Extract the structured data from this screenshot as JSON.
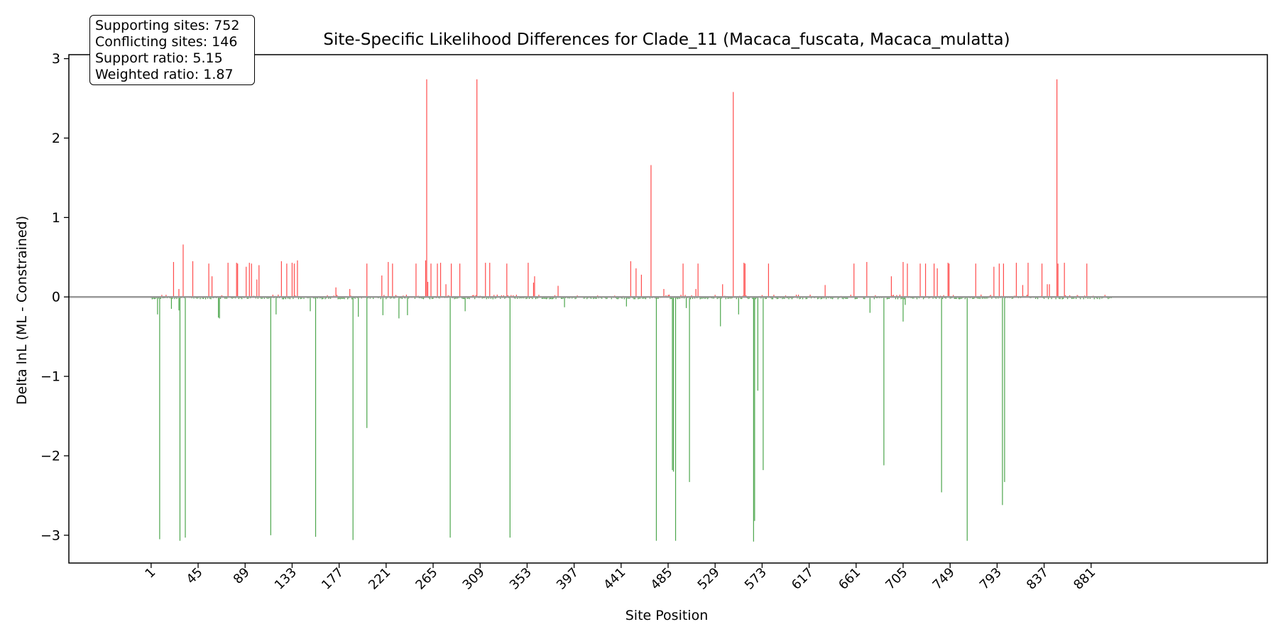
{
  "chart_data": {
    "type": "bar",
    "title": "Site-Specific Likelihood Differences for Clade_11 (Macaca_fuscata, Macaca_mulatta)",
    "xlabel": "Site Position",
    "ylabel": "Delta lnL (ML - Constrained)",
    "xlim": [
      -76,
      1046
    ],
    "ylim": [
      -3.35,
      3.05
    ],
    "x_ticks": [
      1,
      45,
      89,
      133,
      177,
      221,
      265,
      309,
      353,
      397,
      441,
      485,
      529,
      573,
      617,
      661,
      705,
      749,
      793,
      837,
      881
    ],
    "y_ticks": [
      -3,
      -2,
      -1,
      0,
      1,
      2,
      3
    ],
    "num_sites": 900,
    "grid": false,
    "zero_line": true,
    "colors": {
      "positive": "#ff0000",
      "negative": "#008000",
      "zero_line": "#999999"
    },
    "positive_series": {
      "name": "Conflicting sites",
      "x": [
        22,
        27,
        31,
        40,
        55,
        58,
        73,
        81,
        82,
        90,
        93,
        95,
        100,
        102,
        123,
        128,
        133,
        135,
        138,
        174,
        187,
        203,
        217,
        223,
        227,
        249,
        258,
        259,
        260,
        263,
        269,
        272,
        277,
        282,
        290,
        306,
        314,
        318,
        334,
        354,
        359,
        360,
        382,
        450,
        455,
        460,
        469,
        481,
        499,
        511,
        513,
        536,
        546,
        556,
        557,
        579,
        632,
        659,
        671,
        694,
        705,
        709,
        721,
        726,
        734,
        737,
        747,
        748,
        773,
        790,
        795,
        799,
        811,
        817,
        822,
        835,
        840,
        842,
        849,
        850,
        856,
        877
      ],
      "values": [
        0.44,
        0.1,
        0.66,
        0.45,
        0.42,
        0.26,
        0.43,
        0.43,
        0.42,
        0.38,
        0.43,
        0.42,
        0.22,
        0.4,
        0.45,
        0.42,
        0.43,
        0.42,
        0.46,
        0.12,
        0.1,
        0.42,
        0.27,
        0.44,
        0.42,
        0.42,
        0.46,
        2.74,
        0.19,
        0.42,
        0.42,
        0.43,
        0.16,
        0.42,
        0.42,
        2.74,
        0.43,
        0.43,
        0.42,
        0.43,
        0.18,
        0.26,
        0.14,
        0.45,
        0.36,
        0.28,
        1.66,
        0.1,
        0.42,
        0.1,
        0.42,
        0.16,
        2.58,
        0.43,
        0.42,
        0.42,
        0.15,
        0.42,
        0.44,
        0.26,
        0.44,
        0.42,
        0.42,
        0.42,
        0.42,
        0.36,
        0.43,
        0.42,
        0.42,
        0.38,
        0.42,
        0.42,
        0.43,
        0.15,
        0.43,
        0.42,
        0.16,
        0.16,
        2.74,
        0.42,
        0.43,
        0.42
      ]
    },
    "negative_series": {
      "name": "Supporting sites",
      "x": [
        7,
        9,
        20,
        27,
        28,
        33,
        64,
        65,
        113,
        118,
        150,
        155,
        190,
        195,
        203,
        218,
        233,
        241,
        281,
        295,
        337,
        388,
        446,
        474,
        489,
        490,
        492,
        502,
        505,
        534,
        551,
        565,
        566,
        569,
        574,
        674,
        687,
        705,
        707,
        741,
        765,
        798,
        800
      ],
      "values": [
        -0.22,
        -3.05,
        -0.15,
        -0.17,
        -3.07,
        -3.03,
        -0.26,
        -0.27,
        -3.0,
        -0.22,
        -0.18,
        -3.02,
        -3.06,
        -0.25,
        -1.65,
        -0.23,
        -0.27,
        -0.23,
        -3.03,
        -0.18,
        -3.03,
        -0.13,
        -0.12,
        -3.07,
        -2.18,
        -2.2,
        -3.07,
        -0.14,
        -2.33,
        -0.37,
        -0.22,
        -3.08,
        -2.82,
        -1.18,
        -2.18,
        -0.2,
        -2.12,
        -0.31,
        -0.1,
        -2.46,
        -3.07,
        -2.62,
        -2.33
      ]
    },
    "noise_amplitude": 0.03,
    "stats_box": {
      "supporting": "Supporting sites: 752",
      "conflicting": "Conflicting sites: 146",
      "support_ratio": "Support ratio: 5.15",
      "weighted_ratio": "Weighted ratio: 1.87"
    }
  }
}
